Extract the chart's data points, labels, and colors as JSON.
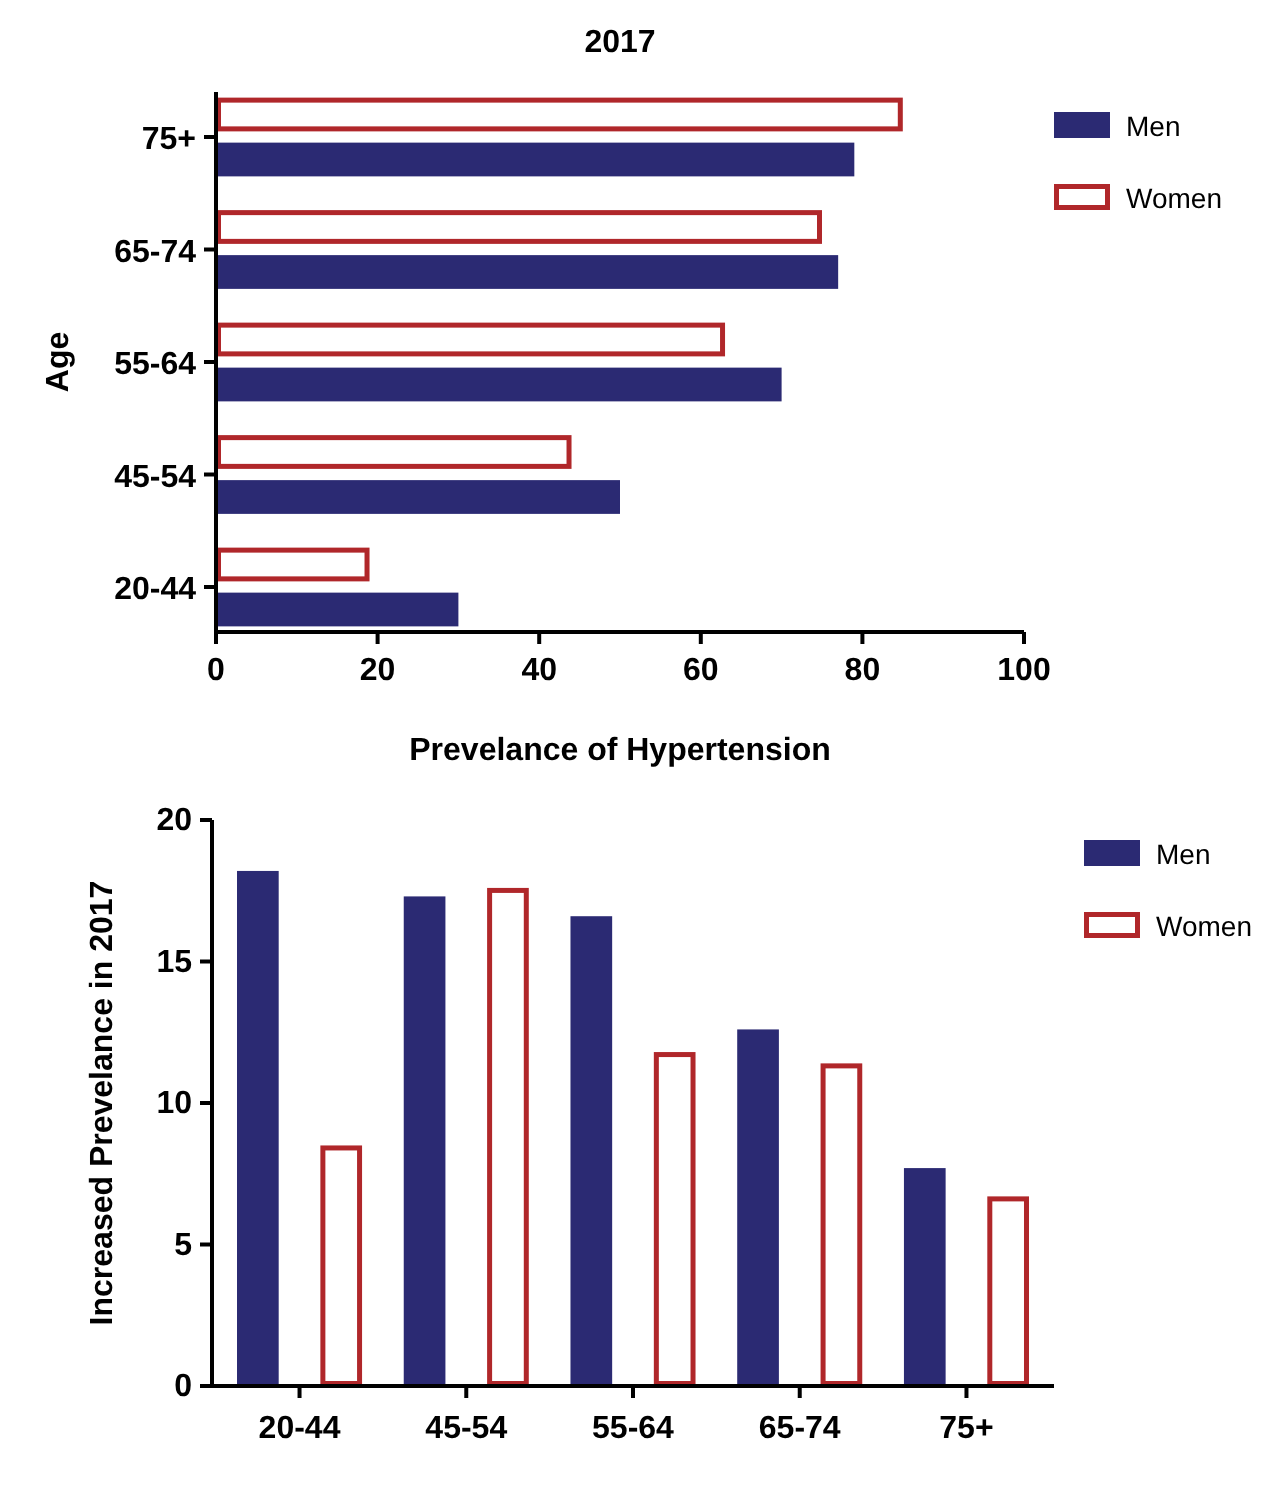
{
  "chart_data": [
    {
      "type": "bar",
      "orientation": "horizontal",
      "title": "2017",
      "xlabel": "Prevelance of Hypertension",
      "ylabel": "Age",
      "categories": [
        "75+",
        "65-74",
        "55-64",
        "45-54",
        "20-44"
      ],
      "xlim": [
        0,
        100
      ],
      "xticks": [
        0,
        20,
        40,
        60,
        80,
        100
      ],
      "legend": "top right",
      "grid": false,
      "series": [
        {
          "name": "Men",
          "color": "#2b2a73",
          "values": [
            79,
            77,
            70,
            50,
            30
          ]
        },
        {
          "name": "Women",
          "color": "#b0272a",
          "values": [
            85,
            75,
            63,
            44,
            19
          ]
        }
      ]
    },
    {
      "type": "bar",
      "ylabel": "Increased Prevelance in 2017",
      "categories": [
        "20-44",
        "45-54",
        "55-64",
        "65-74",
        "75+"
      ],
      "ylim": [
        0,
        20
      ],
      "yticks": [
        0,
        5,
        10,
        15,
        20
      ],
      "legend": "top right",
      "grid": false,
      "series": [
        {
          "name": "Men",
          "color": "#2b2a73",
          "values": [
            18.2,
            17.3,
            16.6,
            12.6,
            7.7
          ]
        },
        {
          "name": "Women",
          "color": "#b0272a",
          "values": [
            8.5,
            17.6,
            11.8,
            11.4,
            6.7
          ]
        }
      ]
    }
  ]
}
